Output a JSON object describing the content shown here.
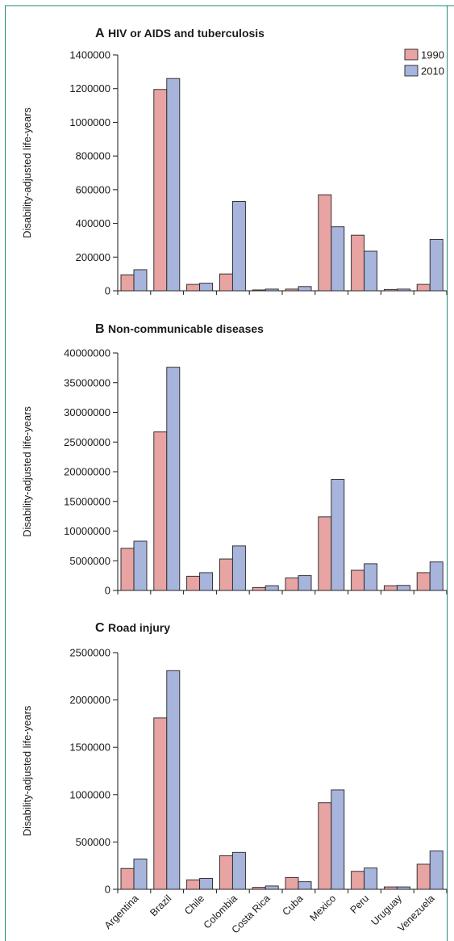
{
  "colors": {
    "frame": "#1f8a7a",
    "bar_1990": "#e8a3a3",
    "bar_2010": "#a7b4dc",
    "axis": "#1a1a1a"
  },
  "legend": [
    {
      "label": "1990",
      "color_key": "bar_1990"
    },
    {
      "label": "2010",
      "color_key": "bar_2010"
    }
  ],
  "categories": [
    "Argentina",
    "Brazil",
    "Chile",
    "Colombia",
    "Costa Rica",
    "Cuba",
    "Mexico",
    "Peru",
    "Uruguay",
    "Venezuela"
  ],
  "chart_data": [
    {
      "type": "bar",
      "letter": "A",
      "title": "HIV or AIDS and tuberculosis",
      "ylabel": "Disability-adjusted life-years",
      "ylim": [
        0,
        1400000
      ],
      "yticks": [
        0,
        200000,
        400000,
        600000,
        800000,
        1000000,
        1200000,
        1400000
      ],
      "series": [
        {
          "name": "1990",
          "values": [
            95000,
            1195000,
            38000,
            100000,
            5000,
            10000,
            570000,
            330000,
            8000,
            38000
          ]
        },
        {
          "name": "2010",
          "values": [
            125000,
            1260000,
            45000,
            530000,
            10000,
            25000,
            380000,
            235000,
            10000,
            305000
          ]
        }
      ]
    },
    {
      "type": "bar",
      "letter": "B",
      "title": "Non-communicable diseases",
      "ylabel": "Disability-adjusted life-years",
      "ylim": [
        0,
        40000000
      ],
      "yticks": [
        0,
        5000000,
        10000000,
        15000000,
        20000000,
        25000000,
        30000000,
        35000000,
        40000000
      ],
      "series": [
        {
          "name": "1990",
          "values": [
            7100000,
            26700000,
            2400000,
            5300000,
            500000,
            2100000,
            12400000,
            3400000,
            800000,
            3000000
          ]
        },
        {
          "name": "2010",
          "values": [
            8300000,
            37600000,
            3000000,
            7500000,
            800000,
            2500000,
            18700000,
            4500000,
            850000,
            4800000
          ]
        }
      ]
    },
    {
      "type": "bar",
      "letter": "C",
      "title": "Road injury",
      "ylabel": "Disability-adjusted life-years",
      "ylim": [
        0,
        2500000
      ],
      "yticks": [
        0,
        500000,
        1000000,
        1500000,
        2000000,
        2500000
      ],
      "series": [
        {
          "name": "1990",
          "values": [
            220000,
            1810000,
            100000,
            355000,
            20000,
            125000,
            915000,
            190000,
            25000,
            265000
          ]
        },
        {
          "name": "2010",
          "values": [
            320000,
            2310000,
            115000,
            390000,
            35000,
            80000,
            1050000,
            225000,
            25000,
            405000
          ]
        }
      ]
    }
  ]
}
